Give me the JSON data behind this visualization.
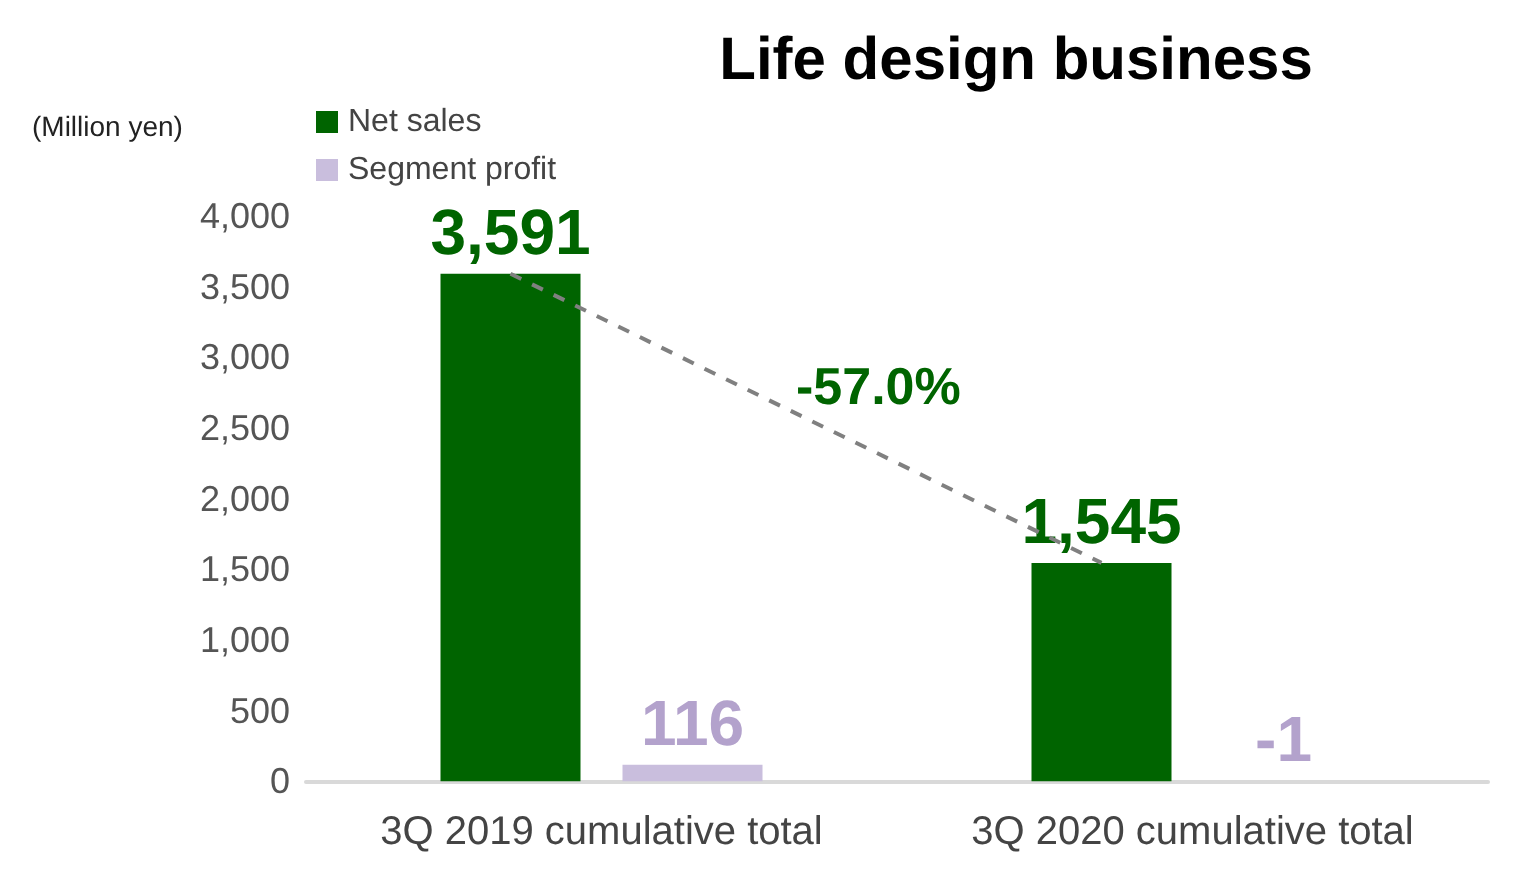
{
  "chart_data": {
    "type": "bar",
    "title": "Life design business",
    "ylabel": "(Million yen)",
    "categories": [
      "3Q 2019 cumulative total",
      "3Q 2020 cumulative total"
    ],
    "series": [
      {
        "name": "Net sales",
        "color": "#006400",
        "values": [
          3591,
          1545
        ],
        "value_labels": [
          "3,591",
          "1,545"
        ]
      },
      {
        "name": "Segment profit",
        "color": "#c9bedd",
        "values": [
          116,
          -1
        ],
        "value_labels": [
          "116",
          "-1"
        ]
      }
    ],
    "ylim": [
      -20,
      4000
    ],
    "yticks": [
      0,
      500,
      {
        "value": 1000,
        "label": "1,000"
      },
      {
        "value": 1500,
        "label": "1,500"
      },
      {
        "value": 2000,
        "label": "2,000"
      },
      {
        "value": 2500,
        "label": "2,500"
      },
      {
        "value": 3000,
        "label": "3,000"
      },
      {
        "value": 3500,
        "label": "3,500"
      },
      {
        "value": 4000,
        "label": "4,000"
      }
    ],
    "annotations": [
      "-57.0%"
    ],
    "grid": false,
    "legend": "top left"
  }
}
